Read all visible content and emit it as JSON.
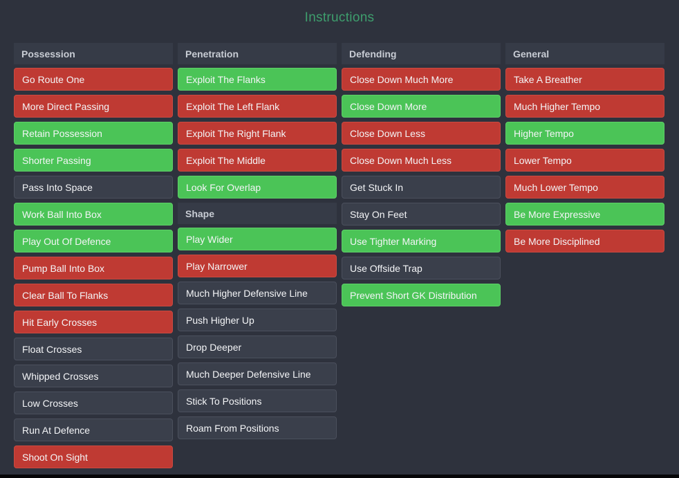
{
  "header": {
    "title": "Instructions"
  },
  "colors": {
    "background": "#2e323d",
    "title": "#3e9e6d",
    "header-bg": "#363b47",
    "header-text": "#c8ccd4",
    "button-text": "#f4f5f7",
    "red": "#bf3a33",
    "red-border": "#cc4a41",
    "green": "#4bc457",
    "green-border": "#5ed168",
    "neutral": "#3a3f4b",
    "neutral-border": "#4b505d",
    "bottom-strip": "#060608"
  },
  "state_legend": {
    "red": "active-negative (red)",
    "green": "active-positive (green)",
    "neutral": "inactive (dark)"
  },
  "columns": [
    {
      "sections": [
        {
          "header": "Possession",
          "items": [
            {
              "label": "Go Route One",
              "state": "red"
            },
            {
              "label": "More Direct Passing",
              "state": "red"
            },
            {
              "label": "Retain Possession",
              "state": "green"
            },
            {
              "label": "Shorter Passing",
              "state": "green"
            },
            {
              "label": "Pass Into Space",
              "state": "neutral"
            },
            {
              "label": "Work Ball Into Box",
              "state": "green"
            },
            {
              "label": "Play Out Of Defence",
              "state": "green"
            },
            {
              "label": "Pump Ball Into Box",
              "state": "red"
            },
            {
              "label": "Clear Ball To Flanks",
              "state": "red"
            },
            {
              "label": "Hit Early Crosses",
              "state": "red"
            },
            {
              "label": "Float Crosses",
              "state": "neutral"
            },
            {
              "label": "Whipped Crosses",
              "state": "neutral"
            },
            {
              "label": "Low Crosses",
              "state": "neutral"
            },
            {
              "label": "Run At Defence",
              "state": "neutral"
            },
            {
              "label": "Shoot On Sight",
              "state": "red"
            }
          ]
        }
      ]
    },
    {
      "sections": [
        {
          "header": "Penetration",
          "items": [
            {
              "label": "Exploit The Flanks",
              "state": "green"
            },
            {
              "label": "Exploit The Left Flank",
              "state": "red"
            },
            {
              "label": "Exploit The Right Flank",
              "state": "red"
            },
            {
              "label": "Exploit The Middle",
              "state": "red"
            },
            {
              "label": "Look For Overlap",
              "state": "green"
            }
          ]
        },
        {
          "header": "Shape",
          "items": [
            {
              "label": "Play Wider",
              "state": "green"
            },
            {
              "label": "Play Narrower",
              "state": "red"
            },
            {
              "label": "Much Higher Defensive Line",
              "state": "neutral"
            },
            {
              "label": "Push Higher Up",
              "state": "neutral"
            },
            {
              "label": "Drop Deeper",
              "state": "neutral"
            },
            {
              "label": "Much Deeper Defensive Line",
              "state": "neutral"
            },
            {
              "label": "Stick To Positions",
              "state": "neutral"
            },
            {
              "label": "Roam From Positions",
              "state": "neutral"
            }
          ]
        }
      ]
    },
    {
      "sections": [
        {
          "header": "Defending",
          "items": [
            {
              "label": "Close Down Much More",
              "state": "red"
            },
            {
              "label": "Close Down More",
              "state": "green"
            },
            {
              "label": "Close Down Less",
              "state": "red"
            },
            {
              "label": "Close Down Much Less",
              "state": "red"
            },
            {
              "label": "Get Stuck In",
              "state": "neutral"
            },
            {
              "label": "Stay On Feet",
              "state": "neutral"
            },
            {
              "label": "Use Tighter Marking",
              "state": "green"
            },
            {
              "label": "Use Offside Trap",
              "state": "neutral"
            },
            {
              "label": "Prevent Short GK Distribution",
              "state": "green"
            }
          ]
        }
      ]
    },
    {
      "sections": [
        {
          "header": "General",
          "items": [
            {
              "label": "Take A Breather",
              "state": "red"
            },
            {
              "label": "Much Higher Tempo",
              "state": "red"
            },
            {
              "label": "Higher Tempo",
              "state": "green"
            },
            {
              "label": "Lower Tempo",
              "state": "red"
            },
            {
              "label": "Much Lower Tempo",
              "state": "red"
            },
            {
              "label": "Be More Expressive",
              "state": "green"
            },
            {
              "label": "Be More Disciplined",
              "state": "red"
            }
          ]
        }
      ]
    }
  ]
}
